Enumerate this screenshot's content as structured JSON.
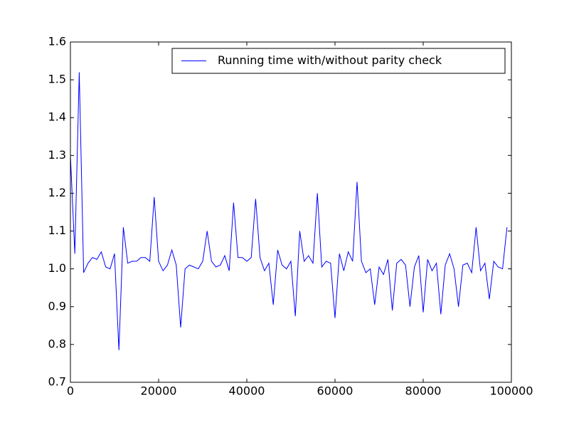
{
  "chart_data": {
    "type": "line",
    "x": [
      0,
      1000,
      2000,
      3000,
      4000,
      5000,
      6000,
      7000,
      8000,
      9000,
      10000,
      11000,
      12000,
      13000,
      14000,
      15000,
      16000,
      17000,
      18000,
      19000,
      20000,
      21000,
      22000,
      23000,
      24000,
      25000,
      26000,
      27000,
      28000,
      29000,
      30000,
      31000,
      32000,
      33000,
      34000,
      35000,
      36000,
      37000,
      38000,
      39000,
      40000,
      41000,
      42000,
      43000,
      44000,
      45000,
      46000,
      47000,
      48000,
      49000,
      50000,
      51000,
      52000,
      53000,
      54000,
      55000,
      56000,
      57000,
      58000,
      59000,
      60000,
      61000,
      62000,
      63000,
      64000,
      65000,
      66000,
      67000,
      68000,
      69000,
      70000,
      71000,
      72000,
      73000,
      74000,
      75000,
      76000,
      77000,
      78000,
      79000,
      80000,
      81000,
      82000,
      83000,
      84000,
      85000,
      86000,
      87000,
      88000,
      89000,
      90000,
      91000,
      92000,
      93000,
      94000,
      95000,
      96000,
      97000,
      98000,
      99000
    ],
    "series": [
      {
        "name": "Running time with/without parity check",
        "color": "#0000ff",
        "values": [
          1.3,
          1.04,
          1.52,
          0.99,
          1.015,
          1.03,
          1.025,
          1.045,
          1.005,
          1.0,
          1.04,
          0.785,
          1.11,
          1.015,
          1.02,
          1.02,
          1.03,
          1.03,
          1.02,
          1.19,
          1.02,
          0.995,
          1.01,
          1.05,
          1.01,
          0.845,
          1.0,
          1.01,
          1.005,
          1.0,
          1.02,
          1.1,
          1.02,
          1.005,
          1.01,
          1.035,
          0.995,
          1.175,
          1.03,
          1.03,
          1.02,
          1.03,
          1.185,
          1.03,
          0.995,
          1.015,
          0.905,
          1.05,
          1.01,
          1.0,
          1.02,
          0.875,
          1.1,
          1.02,
          1.035,
          1.015,
          1.2,
          1.005,
          1.02,
          1.015,
          0.87,
          1.04,
          0.995,
          1.045,
          1.02,
          1.23,
          1.02,
          0.99,
          1.0,
          0.905,
          1.005,
          0.985,
          1.025,
          0.89,
          1.015,
          1.025,
          1.01,
          0.9,
          1.005,
          1.035,
          0.885,
          1.025,
          0.995,
          1.015,
          0.88,
          1.01,
          1.04,
          1.0,
          0.9,
          1.01,
          1.015,
          0.99,
          1.11,
          0.995,
          1.015,
          0.92,
          1.02,
          1.005,
          1.0,
          1.11
        ]
      }
    ],
    "xlim": [
      0,
      100000
    ],
    "xticks": [
      0,
      20000,
      40000,
      60000,
      80000,
      100000
    ],
    "ylim": [
      0.7,
      1.6
    ],
    "yticks": [
      0.7,
      0.8,
      0.9,
      {
        "value": 1,
        "label": "1.0"
      },
      1.1,
      1.2,
      1.3,
      1.4,
      1.5,
      1.6
    ],
    "grid": false,
    "legend": "upper right"
  }
}
